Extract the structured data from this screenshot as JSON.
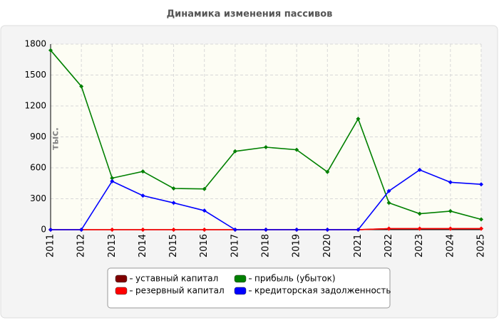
{
  "chart_data": {
    "type": "line",
    "title": "Динамика изменения пассивов",
    "y_label": "тыс.",
    "x": [
      2011,
      2012,
      2013,
      2014,
      2015,
      2016,
      2017,
      2018,
      2019,
      2020,
      2021,
      2022,
      2023,
      2024,
      2025
    ],
    "xlim": [
      2011,
      2025
    ],
    "xticks": [
      2011,
      2012,
      2013,
      2014,
      2015,
      2016,
      2017,
      2018,
      2019,
      2020,
      2021,
      2022,
      2023,
      2024,
      2025
    ],
    "ylim": [
      0,
      1800
    ],
    "yticks": [
      0,
      300,
      600,
      900,
      1200,
      1500,
      1800
    ],
    "grid": true,
    "series": [
      {
        "name": "уставный капитал",
        "color": "#800000",
        "values": [
          0,
          0,
          0,
          0,
          0,
          0,
          0,
          0,
          0,
          0,
          0,
          10,
          10,
          10,
          10
        ]
      },
      {
        "name": "резервный капитал",
        "color": "#ff0000",
        "values": [
          0,
          0,
          0,
          0,
          0,
          0,
          0,
          0,
          0,
          0,
          0,
          10,
          10,
          10,
          10
        ]
      },
      {
        "name": "прибыль (убыток)",
        "color": "#008000",
        "values": [
          1740,
          1390,
          500,
          565,
          400,
          395,
          760,
          800,
          775,
          560,
          1075,
          260,
          155,
          180,
          100
        ]
      },
      {
        "name": "кредиторская задолженность",
        "color": "#0000ff",
        "values": [
          0,
          0,
          470,
          330,
          260,
          185,
          0,
          0,
          0,
          0,
          0,
          375,
          580,
          460,
          440
        ]
      }
    ]
  }
}
